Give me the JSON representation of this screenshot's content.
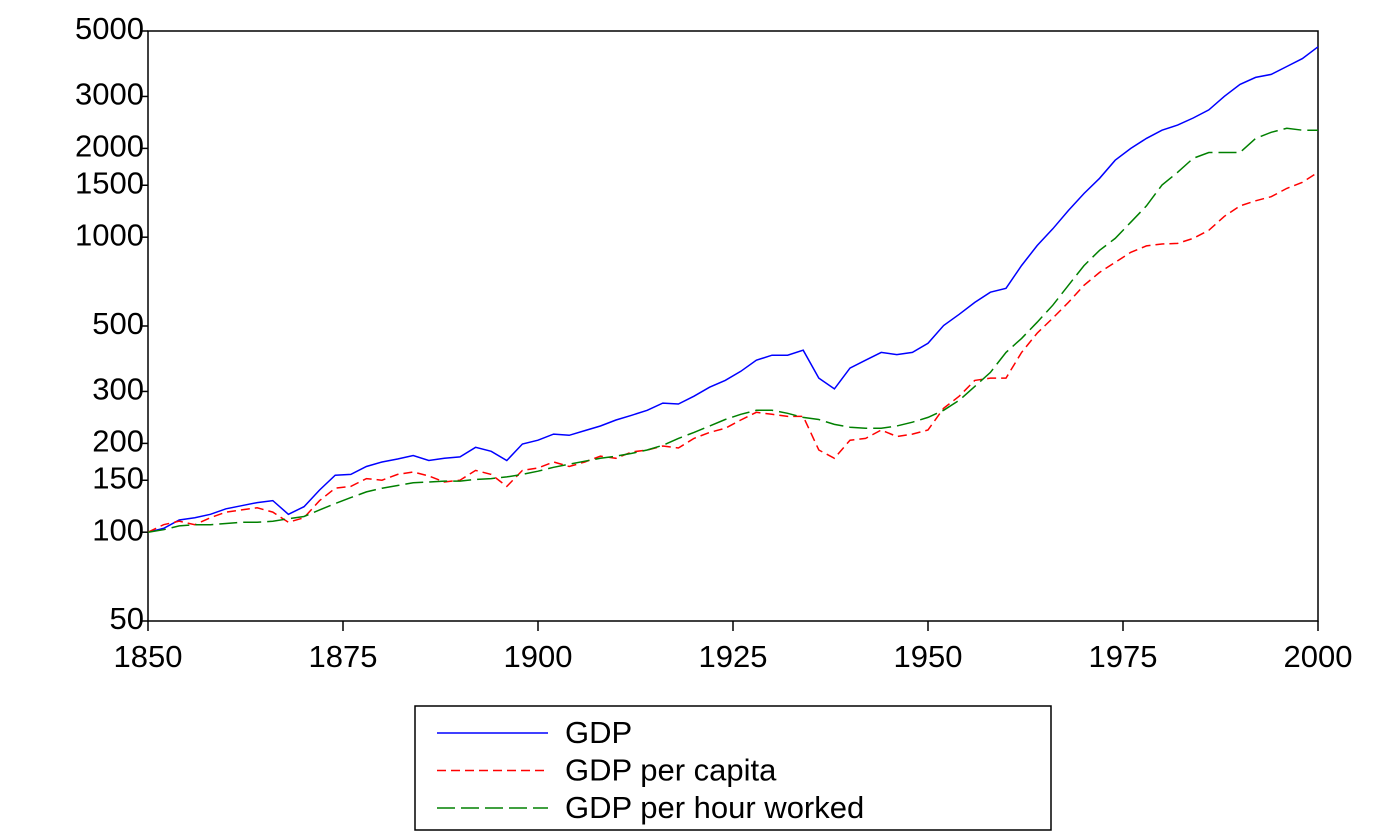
{
  "chart_data": {
    "type": "line",
    "yscale": "log",
    "x": [
      1850,
      1852,
      1854,
      1856,
      1858,
      1860,
      1862,
      1864,
      1866,
      1868,
      1870,
      1872,
      1874,
      1876,
      1878,
      1880,
      1882,
      1884,
      1886,
      1888,
      1890,
      1892,
      1894,
      1896,
      1898,
      1900,
      1902,
      1904,
      1906,
      1908,
      1910,
      1912,
      1914,
      1916,
      1918,
      1920,
      1922,
      1924,
      1926,
      1928,
      1930,
      1932,
      1934,
      1936,
      1938,
      1940,
      1942,
      1944,
      1946,
      1948,
      1950,
      1952,
      1954,
      1956,
      1958,
      1960,
      1962,
      1964,
      1966,
      1968,
      1970,
      1972,
      1974,
      1976,
      1978,
      1980,
      1982,
      1984,
      1986,
      1988,
      1990,
      1992,
      1994,
      1996,
      1998,
      2000
    ],
    "series": [
      {
        "name": "GDP",
        "color": "#0000ff",
        "values": [
          100,
          103,
          110,
          112,
          115,
          120,
          123,
          126,
          128,
          115,
          122,
          139,
          156,
          157,
          167,
          173,
          177,
          182,
          175,
          178,
          180,
          194,
          188,
          175,
          199,
          205,
          215,
          213,
          221,
          229,
          240,
          249,
          259,
          274,
          272,
          289,
          310,
          327,
          351,
          383,
          398,
          398,
          414,
          333,
          306,
          360,
          383,
          407,
          400,
          407,
          437,
          502,
          548,
          601,
          651,
          671,
          802,
          937,
          1068,
          1232,
          1406,
          1584,
          1824,
          2000,
          2163,
          2306,
          2399,
          2536,
          2700,
          3003,
          3295,
          3481,
          3562,
          3790,
          4032,
          4421
        ]
      },
      {
        "name": "GDP per capita",
        "color": "#ff0000",
        "values": [
          100,
          106,
          109,
          106,
          112,
          117,
          119,
          121,
          117,
          108,
          112,
          128,
          141,
          143,
          152,
          150,
          157,
          160,
          155,
          148,
          150,
          162,
          157,
          143,
          162,
          165,
          173,
          167,
          173,
          181,
          178,
          187,
          190,
          196,
          193,
          208,
          218,
          225,
          240,
          255,
          251,
          247,
          247,
          190,
          178,
          205,
          208,
          222,
          211,
          215,
          222,
          263,
          289,
          327,
          333,
          333,
          407,
          473,
          532,
          601,
          687,
          760,
          822,
          889,
          934,
          948,
          953,
          991,
          1055,
          1177,
          1277,
          1329,
          1372,
          1463,
          1535,
          1659
        ]
      },
      {
        "name": "GDP per hour worked",
        "color": "#008000",
        "values": [
          100,
          102,
          105,
          106,
          106,
          107,
          108,
          108,
          109,
          111,
          113,
          119,
          125,
          131,
          137,
          141,
          144,
          147,
          148,
          149,
          149,
          151,
          152,
          154,
          157,
          161,
          166,
          170,
          174,
          178,
          181,
          185,
          190,
          197,
          208,
          218,
          229,
          241,
          251,
          259,
          259,
          253,
          245,
          241,
          232,
          227,
          225,
          225,
          229,
          236,
          245,
          259,
          280,
          312,
          348,
          407,
          454,
          515,
          588,
          687,
          801,
          903,
          991,
          1124,
          1277,
          1503,
          1659,
          1851,
          1937,
          1937,
          1937,
          2163,
          2267,
          2339,
          2306,
          2306
        ]
      }
    ],
    "xlim": [
      1850,
      2000
    ],
    "xticks": [
      1850,
      1875,
      1900,
      1925,
      1950,
      1975,
      2000
    ],
    "ylim": [
      50,
      5000
    ],
    "yticks": [
      50,
      100,
      150,
      200,
      300,
      500,
      1000,
      1500,
      2000,
      3000,
      5000
    ]
  }
}
